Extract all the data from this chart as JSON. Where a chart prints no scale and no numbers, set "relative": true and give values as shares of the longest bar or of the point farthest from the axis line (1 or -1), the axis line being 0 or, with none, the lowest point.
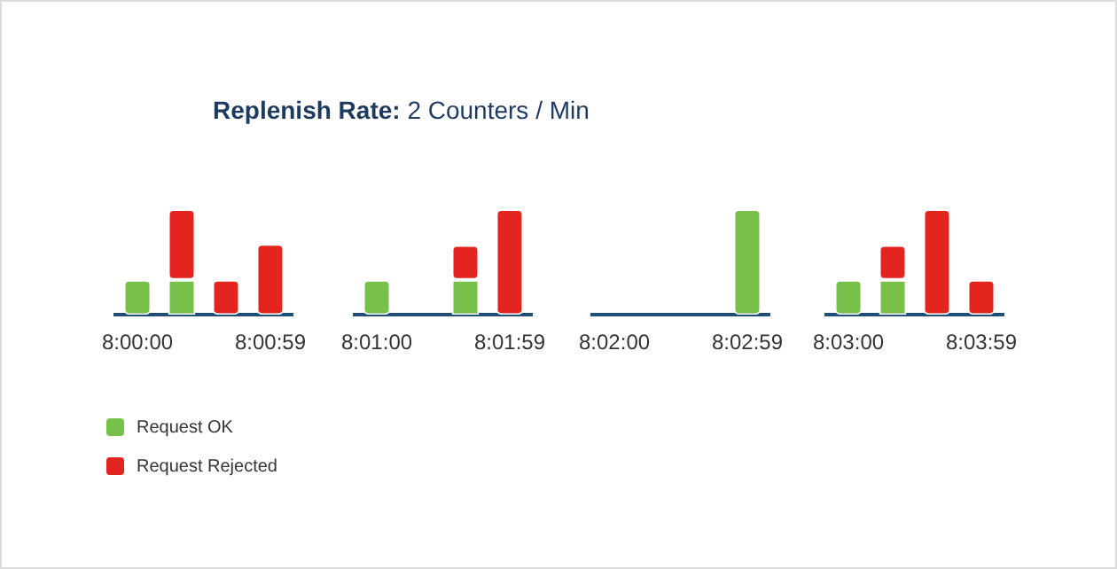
{
  "chart_data": [
    {
      "type": "bar",
      "title": "Replenish Rate: 2 Counters / Min",
      "stacked": true,
      "relative": true,
      "legend": "bottom left",
      "categories": [
        "8:00:00",
        null,
        null,
        "8:00:59"
      ],
      "series": [
        {
          "name": "Request OK",
          "color": "#77c04a",
          "values": [
            0.33,
            0.33,
            0,
            0
          ]
        },
        {
          "name": "Request Rejected",
          "color": "#e3241f",
          "values": [
            0,
            0.67,
            0.33,
            0.67
          ]
        }
      ]
    },
    {
      "type": "bar",
      "stacked": true,
      "relative": true,
      "categories": [
        "8:01:00",
        null,
        null,
        "8:01:59"
      ],
      "series": [
        {
          "color": "#77c04a",
          "values": [
            0.33,
            0,
            0.33,
            0
          ]
        },
        {
          "color": "#e3241f",
          "values": [
            0,
            0,
            0.33,
            1
          ]
        }
      ]
    },
    {
      "type": "bar",
      "stacked": true,
      "relative": true,
      "categories": [
        "8:02:00",
        null,
        null,
        "8:02:59"
      ],
      "series": [
        {
          "color": "#77c04a",
          "values": [
            0,
            0,
            0,
            1
          ]
        }
      ]
    },
    {
      "type": "bar",
      "stacked": true,
      "relative": true,
      "categories": [
        "8:03:00",
        null,
        null,
        "8:03:59"
      ],
      "series": [
        {
          "color": "#77c04a",
          "values": [
            0.33,
            0.33,
            0,
            0
          ]
        },
        {
          "color": "#e3241f",
          "values": [
            0,
            0.33,
            1,
            0.33
          ]
        }
      ]
    }
  ]
}
